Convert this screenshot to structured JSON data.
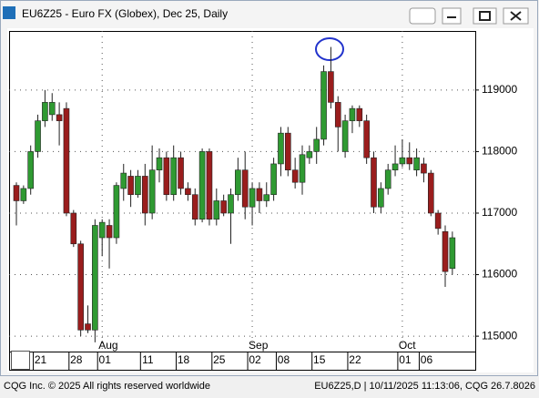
{
  "chart_data": {
    "type": "candlestick",
    "title": "EU6Z25 - Euro FX (Globex), Dec 25, Daily",
    "footer_left": "CQG Inc. © 2025 All rights reserved worldwide",
    "footer_right": "EU6Z25,D | 10/11/2025 11:13:06, CQG 26.7.8026",
    "categories": [
      null,
      null,
      null,
      "21",
      null,
      null,
      null,
      null,
      "28",
      null,
      null,
      null,
      "01",
      null,
      null,
      null,
      null,
      null,
      "11",
      null,
      null,
      null,
      null,
      "18",
      null,
      null,
      null,
      null,
      "25",
      null,
      null,
      null,
      null,
      "02",
      null,
      null,
      null,
      "08",
      null,
      null,
      null,
      null,
      "15",
      null,
      null,
      null,
      null,
      "22",
      null,
      null,
      null,
      null,
      null,
      null,
      "01",
      null,
      null,
      "06",
      null,
      null,
      null,
      null
    ],
    "months": [
      null,
      null,
      null,
      null,
      null,
      null,
      null,
      null,
      null,
      null,
      null,
      null,
      "Aug",
      null,
      null,
      null,
      null,
      null,
      null,
      null,
      null,
      null,
      null,
      null,
      null,
      null,
      null,
      null,
      null,
      null,
      null,
      null,
      null,
      "Sep",
      null,
      null,
      null,
      null,
      null,
      null,
      null,
      null,
      null,
      null,
      null,
      null,
      null,
      null,
      null,
      null,
      null,
      null,
      null,
      null,
      "Oct",
      null,
      null,
      null,
      null,
      null,
      null,
      null
    ],
    "open": [
      117450,
      117200,
      117400,
      118000,
      118500,
      118600,
      118600,
      118700,
      117000,
      116500,
      115200,
      115100,
      116600,
      116800,
      116600,
      117400,
      117600,
      117300,
      117600,
      117000,
      117700,
      117900,
      117300,
      117900,
      117400,
      117300,
      116900,
      118000,
      116900,
      117200,
      117000,
      117300,
      117700,
      117100,
      117400,
      117200,
      117300,
      117800,
      118300,
      117700,
      117500,
      117900,
      118000,
      118200,
      119300,
      118800,
      118000,
      118500,
      118700,
      118500,
      117900,
      117100,
      117400,
      117700,
      117800,
      117900,
      117700,
      117800,
      117650,
      117000,
      116700,
      116100
    ],
    "high": [
      117500,
      117450,
      118100,
      118600,
      119000,
      118950,
      118800,
      118800,
      117050,
      116550,
      115500,
      116900,
      116900,
      116900,
      117500,
      117800,
      117700,
      117700,
      117800,
      118100,
      118050,
      118000,
      118100,
      118000,
      117500,
      117400,
      118050,
      118050,
      117400,
      117300,
      117400,
      117900,
      118000,
      117500,
      117500,
      117500,
      117900,
      118400,
      118400,
      117900,
      118100,
      118100,
      118400,
      119400,
      119700,
      118900,
      118600,
      118750,
      118750,
      118600,
      118000,
      117500,
      117800,
      118100,
      118200,
      118150,
      118050,
      117900,
      117700,
      117050,
      116800,
      116700
    ],
    "low": [
      116800,
      117150,
      117300,
      117900,
      118400,
      118500,
      118100,
      116950,
      116450,
      115000,
      115050,
      114900,
      116300,
      116100,
      116500,
      117200,
      117100,
      117250,
      116800,
      116900,
      117500,
      117200,
      117200,
      117300,
      117200,
      116800,
      116850,
      116800,
      116800,
      116950,
      116500,
      117200,
      116900,
      116800,
      117000,
      117100,
      117200,
      117600,
      117600,
      117400,
      117300,
      117800,
      117800,
      118100,
      118700,
      118000,
      117900,
      118300,
      118400,
      117800,
      117000,
      117000,
      117300,
      117600,
      117750,
      117700,
      117600,
      117500,
      116950,
      116650,
      115800,
      116000
    ],
    "close": [
      117200,
      117400,
      118000,
      118500,
      118800,
      118800,
      118500,
      117000,
      116500,
      115100,
      115100,
      116800,
      116850,
      116600,
      117450,
      117650,
      117300,
      117600,
      117000,
      117700,
      117900,
      117300,
      117900,
      117400,
      117300,
      116900,
      118000,
      116900,
      117200,
      117000,
      117300,
      117700,
      117100,
      117400,
      117200,
      117300,
      117800,
      118300,
      117700,
      117500,
      117950,
      118000,
      118200,
      119300,
      118800,
      118400,
      118500,
      118700,
      118500,
      117900,
      117100,
      117400,
      117700,
      117800,
      117900,
      117800,
      117900,
      117650,
      117000,
      116750,
      116050,
      116600
    ],
    "up_color": "#2f9a32",
    "down_color": "#9a1d1d",
    "ylim": [
      114750,
      119960
    ],
    "yticks": [
      115000,
      116000,
      117000,
      118000,
      119000
    ],
    "grid": true
  }
}
